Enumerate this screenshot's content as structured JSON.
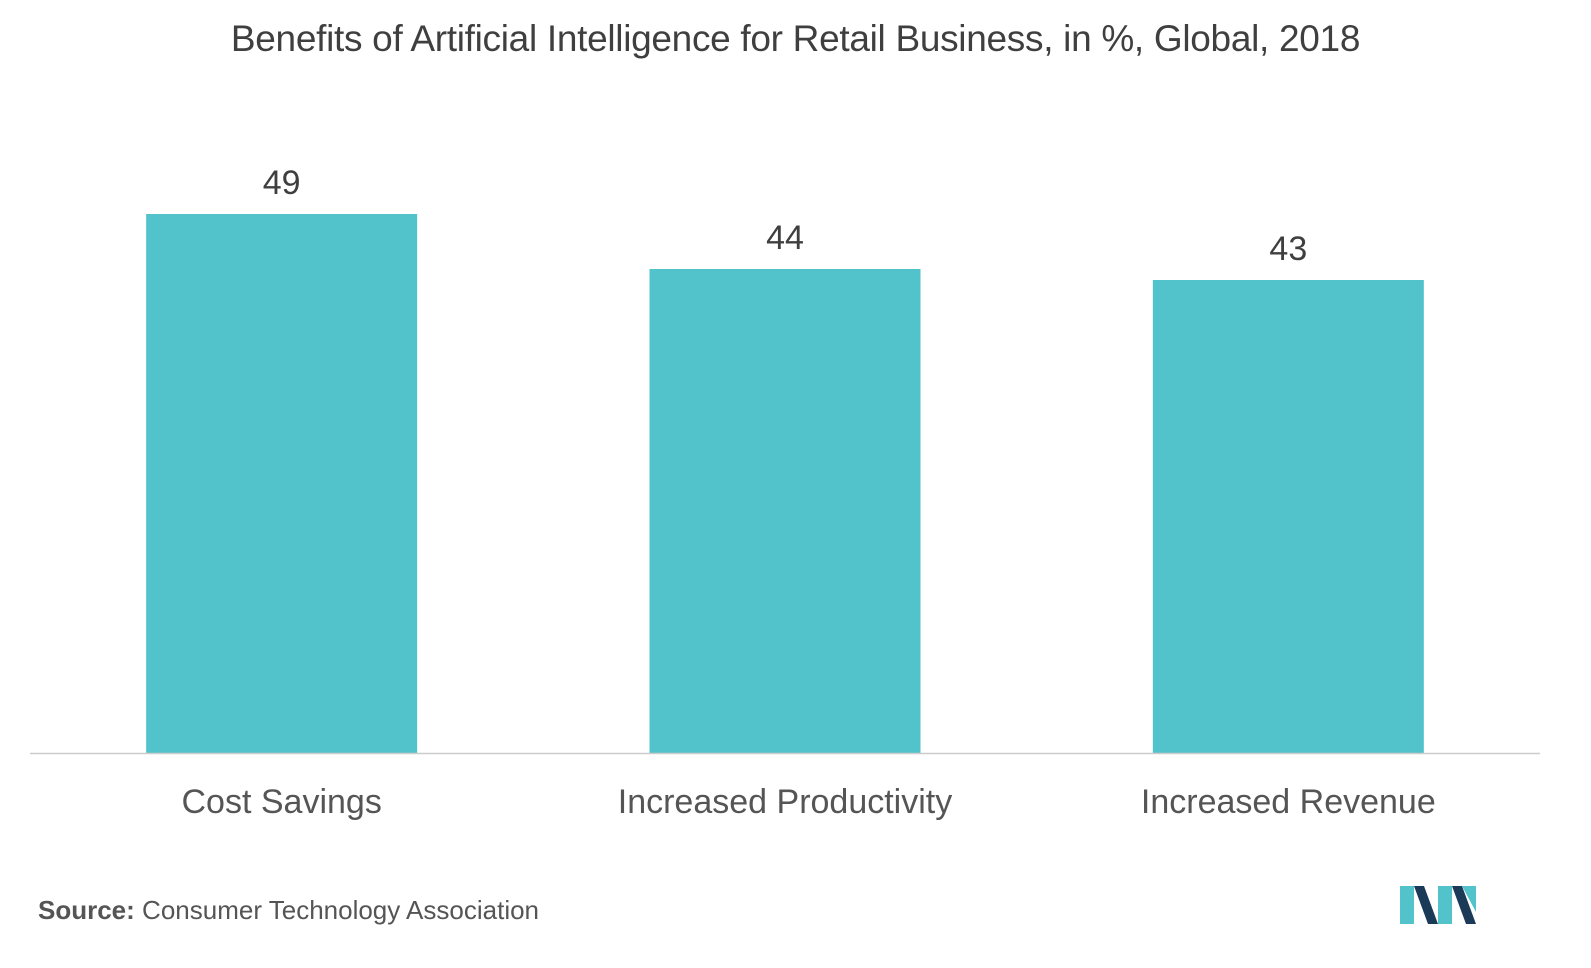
{
  "chart_data": {
    "type": "bar",
    "title": "Benefits of Artificial Intelligence for Retail Business, in %, Global, 2018",
    "categories": [
      "Cost Savings",
      "Increased Productivity",
      "Increased Revenue"
    ],
    "values": [
      49,
      44,
      43
    ],
    "ylim": [
      0,
      52
    ],
    "xlabel": "",
    "ylabel": "",
    "grid": false,
    "bar_color": "#52c3ca",
    "axis_color": "#cccccc"
  },
  "source": {
    "label": "Source:",
    "text": "Consumer Technology Association"
  },
  "logo": {
    "icon": "mordor-intelligence-logo-icon",
    "colors": [
      "#1b3a57",
      "#52c3ca"
    ]
  }
}
